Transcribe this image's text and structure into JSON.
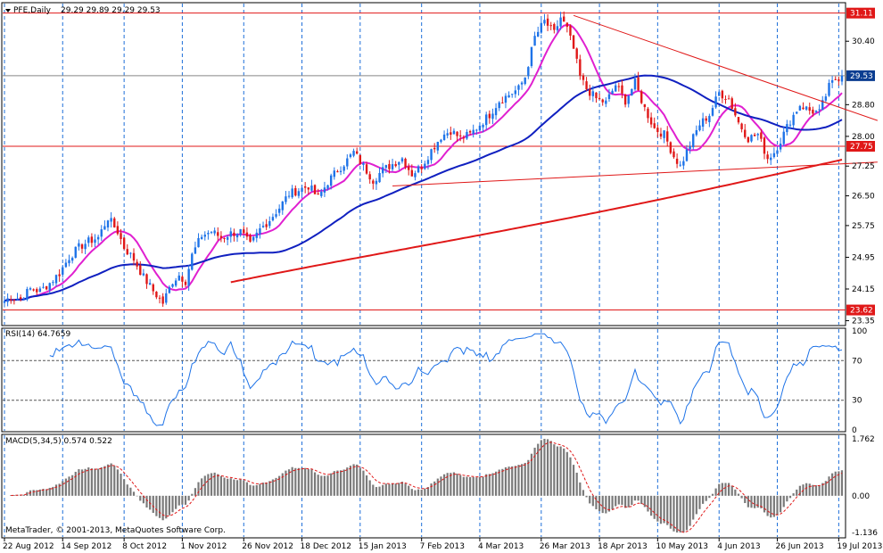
{
  "header": {
    "symbol_title": "PFE,Daily",
    "ohlc": "29.29 29.89 29.29 29.53",
    "rsi_title": "RSI(14) 64.7659",
    "macd_title": "MACD(5,34,5) 0.574 0.522",
    "copyright": "MetaTrader, © 2001-2013, MetaQuotes Software Corp."
  },
  "colors": {
    "background": "#ffffff",
    "grid": "#1e6fd9",
    "bull": "#1e73e8",
    "bear": "#e01818",
    "ma_fast": "#e020d0",
    "ma_mid": "#1020c0",
    "ma_slow": "#e01818",
    "level": "#e01818",
    "rsi_line": "#1e73e8",
    "macd_hist": "#7a7a7a",
    "macd_signal": "#e01818",
    "last_price_flag": "#0b3d91"
  },
  "chart_data": {
    "type": "candlestick",
    "x_ticks": [
      "22 Aug 2012",
      "14 Sep 2012",
      "8 Oct 2012",
      "1 Nov 2012",
      "26 Nov 2012",
      "18 Dec 2012",
      "15 Jan 2013",
      "7 Feb 2013",
      "4 Mar 2013",
      "26 Mar 2013",
      "18 Apr 2013",
      "10 May 2013",
      "4 Jun 2013",
      "26 Jun 2013",
      "19 Jul 2013"
    ],
    "price_axis": {
      "ticks": [
        "30.40",
        "28.80",
        "28.00",
        "27.25",
        "26.50",
        "25.75",
        "24.95",
        "24.15",
        "23.35"
      ],
      "ylim": [
        23.25,
        31.35
      ]
    },
    "price_anchors": [
      [
        0,
        23.85
      ],
      [
        2,
        23.95
      ],
      [
        5,
        23.9
      ],
      [
        8,
        24.15
      ],
      [
        11,
        24.1
      ],
      [
        14,
        24.3
      ],
      [
        17,
        24.55
      ],
      [
        20,
        24.95
      ],
      [
        23,
        25.2
      ],
      [
        26,
        25.35
      ],
      [
        29,
        25.45
      ],
      [
        32,
        25.95
      ],
      [
        35,
        25.6
      ],
      [
        37,
        25.2
      ],
      [
        40,
        24.9
      ],
      [
        43,
        24.45
      ],
      [
        46,
        24.1
      ],
      [
        49,
        23.8
      ],
      [
        52,
        24.35
      ],
      [
        54,
        24.5
      ],
      [
        56,
        24.35
      ],
      [
        58,
        25.0
      ],
      [
        61,
        25.5
      ],
      [
        64,
        25.6
      ],
      [
        67,
        25.45
      ],
      [
        70,
        25.55
      ],
      [
        73,
        25.6
      ],
      [
        76,
        25.25
      ],
      [
        79,
        25.65
      ],
      [
        82,
        25.9
      ],
      [
        85,
        26.2
      ],
      [
        88,
        26.55
      ],
      [
        91,
        26.65
      ],
      [
        94,
        26.75
      ],
      [
        97,
        26.45
      ],
      [
        100,
        26.85
      ],
      [
        103,
        27.15
      ],
      [
        106,
        27.4
      ],
      [
        108,
        27.6
      ],
      [
        111,
        27.25
      ],
      [
        114,
        26.9
      ],
      [
        117,
        27.15
      ],
      [
        120,
        27.3
      ],
      [
        123,
        27.45
      ],
      [
        126,
        27.05
      ],
      [
        129,
        27.25
      ],
      [
        132,
        27.65
      ],
      [
        135,
        28.0
      ],
      [
        138,
        28.15
      ],
      [
        141,
        27.95
      ],
      [
        144,
        28.05
      ],
      [
        147,
        28.3
      ],
      [
        150,
        28.55
      ],
      [
        153,
        28.9
      ],
      [
        156,
        29.05
      ],
      [
        159,
        29.2
      ],
      [
        161,
        29.5
      ],
      [
        164,
        30.5
      ],
      [
        167,
        30.9
      ],
      [
        170,
        30.6
      ],
      [
        172,
        31.0
      ],
      [
        174,
        30.7
      ],
      [
        176,
        30.2
      ],
      [
        178,
        29.5
      ],
      [
        180,
        29.2
      ],
      [
        183,
        28.95
      ],
      [
        186,
        28.85
      ],
      [
        189,
        29.3
      ],
      [
        192,
        28.9
      ],
      [
        195,
        29.35
      ],
      [
        198,
        28.7
      ],
      [
        201,
        28.2
      ],
      [
        204,
        28.05
      ],
      [
        207,
        27.5
      ],
      [
        209,
        27.25
      ],
      [
        212,
        27.8
      ],
      [
        215,
        28.3
      ],
      [
        218,
        28.55
      ],
      [
        221,
        29.1
      ],
      [
        224,
        28.95
      ],
      [
        227,
        28.35
      ],
      [
        230,
        27.95
      ],
      [
        233,
        28.05
      ],
      [
        236,
        27.45
      ],
      [
        238,
        27.6
      ],
      [
        240,
        27.9
      ],
      [
        243,
        28.4
      ],
      [
        246,
        28.8
      ],
      [
        249,
        28.65
      ],
      [
        252,
        28.6
      ],
      [
        255,
        29.25
      ],
      [
        257,
        29.45
      ],
      [
        259,
        29.53
      ]
    ],
    "price_levels": [
      {
        "value": 31.11,
        "label": "31.11"
      },
      {
        "value": 27.75,
        "label": "27.75"
      },
      {
        "value": 23.62,
        "label": "23.62"
      }
    ],
    "last_price": {
      "value": 29.53,
      "label": "29.53"
    },
    "moving_averages": [
      {
        "period": 10,
        "color_key": "ma_fast"
      },
      {
        "period": 50,
        "color_key": "ma_mid"
      },
      {
        "period": 200,
        "color_key": "ma_slow"
      }
    ],
    "trendlines": [
      {
        "from": [
          176,
          31.05
        ],
        "to": [
          270,
          28.4
        ]
      },
      {
        "from": [
          120,
          26.75
        ],
        "to": [
          270,
          27.35
        ]
      }
    ],
    "rsi_panel": {
      "ticks": [
        "100",
        "70",
        "30",
        "0"
      ],
      "levels": [
        70,
        30
      ],
      "current": 64.7659
    },
    "macd_panel": {
      "ticks": [
        "1.762",
        "0.00",
        "-1.136"
      ],
      "ylim": [
        -1.136,
        1.762
      ],
      "main": 0.574,
      "signal": 0.522
    }
  }
}
